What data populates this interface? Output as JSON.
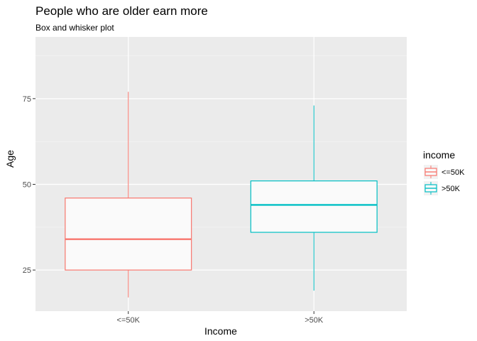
{
  "chart_data": {
    "type": "box",
    "title": "People who are older earn more",
    "subtitle": "Box and whisker plot",
    "xlabel": "Income",
    "ylabel": "Age",
    "categories": [
      "<=50K",
      ">50K"
    ],
    "ylim": [
      13,
      93
    ],
    "yticks": [
      25,
      50,
      75
    ],
    "grid": true,
    "legend": {
      "title": "income",
      "position": "right",
      "entries": [
        "<=50K",
        ">50K"
      ]
    },
    "series": [
      {
        "name": "<=50K",
        "color": "#F8766D",
        "min": 17,
        "q1": 25,
        "median": 34,
        "q3": 46,
        "max": 77
      },
      {
        "name": ">50K",
        "color": "#00BFC4",
        "min": 19,
        "q1": 36,
        "median": 44,
        "q3": 51,
        "max": 73
      }
    ]
  }
}
